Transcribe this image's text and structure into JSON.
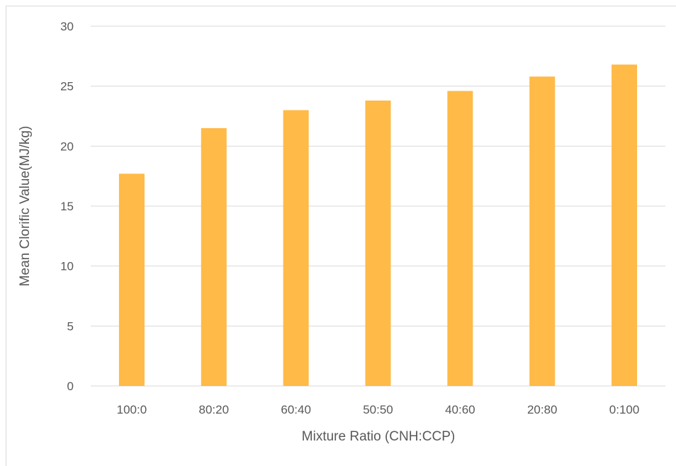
{
  "chart_data": {
    "type": "bar",
    "title": "",
    "xlabel": "Mixture Ratio (CNH:CCP)",
    "ylabel": "Mean Clorific Value(MJ/kg)",
    "categories": [
      "100:0",
      "80:20",
      "60:40",
      "50:50",
      "40:60",
      "20:80",
      "0:100"
    ],
    "values": [
      17.7,
      21.5,
      23.0,
      23.8,
      24.6,
      25.8,
      26.8
    ],
    "ylim": [
      0,
      30
    ],
    "yticks": [
      0,
      5,
      10,
      15,
      20,
      25,
      30
    ],
    "grid": true,
    "legend": "none",
    "bar_color": "#FFBA47",
    "grid_color": "#d9d9d9"
  }
}
